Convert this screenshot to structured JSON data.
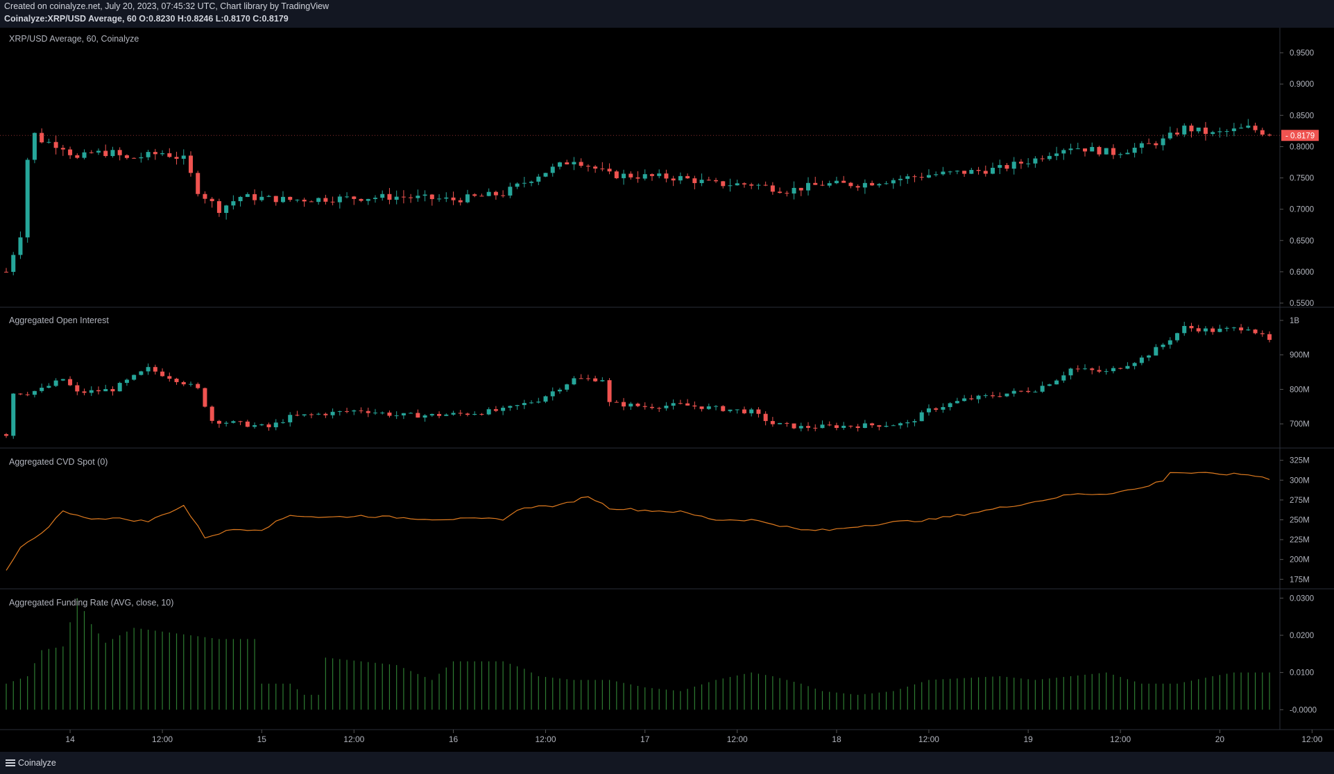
{
  "header": {
    "line1": "Created on coinalyze.net, July 20, 2023, 07:45:32 UTC, Chart library by TradingView",
    "line2": "Coinalyze:XRP/USD Average, 60 O:0.8230 H:0.8246 L:0.8170 C:0.8179"
  },
  "footer": {
    "brand": "Coinalyze"
  },
  "colors": {
    "up": "#26a69a",
    "down": "#ef5350",
    "cvd": "#e07b1f",
    "funding": "#2e7d32",
    "grid": "#2a2e39",
    "text": "#b2b5be"
  },
  "chart_data": [
    {
      "type": "candlestick",
      "title": "XRP/USD Average, 60, Coinalyze",
      "ylim": [
        0.55,
        0.97
      ],
      "y_ticks": [
        "0.9500",
        "0.9000",
        "0.8500",
        "0.8000",
        "0.7500",
        "0.7000",
        "0.6500",
        "0.6000",
        "0.5500"
      ],
      "last_price": "0.8179",
      "anchors": [
        [
          0,
          0.6
        ],
        [
          2,
          0.66
        ],
        [
          3,
          0.78
        ],
        [
          4,
          0.82
        ],
        [
          5,
          0.81
        ],
        [
          8,
          0.8
        ],
        [
          10,
          0.78
        ],
        [
          12,
          0.79
        ],
        [
          15,
          0.79
        ],
        [
          17,
          0.78
        ],
        [
          22,
          0.79
        ],
        [
          25,
          0.78
        ],
        [
          27,
          0.73
        ],
        [
          30,
          0.7
        ],
        [
          33,
          0.72
        ],
        [
          40,
          0.715
        ],
        [
          55,
          0.72
        ],
        [
          63,
          0.715
        ],
        [
          70,
          0.725
        ],
        [
          75,
          0.755
        ],
        [
          80,
          0.78
        ],
        [
          85,
          0.755
        ],
        [
          95,
          0.75
        ],
        [
          100,
          0.74
        ],
        [
          105,
          0.74
        ],
        [
          110,
          0.73
        ],
        [
          115,
          0.74
        ],
        [
          120,
          0.74
        ],
        [
          130,
          0.755
        ],
        [
          136,
          0.76
        ],
        [
          140,
          0.765
        ],
        [
          145,
          0.78
        ],
        [
          148,
          0.795
        ],
        [
          150,
          0.8
        ],
        [
          156,
          0.79
        ],
        [
          160,
          0.8
        ],
        [
          163,
          0.81
        ],
        [
          166,
          0.83
        ],
        [
          170,
          0.82
        ],
        [
          175,
          0.83
        ],
        [
          178,
          0.82
        ]
      ],
      "x_labels": [
        {
          "label": "14",
          "bar": 9
        },
        {
          "label": "12:00",
          "bar": 22
        },
        {
          "label": "15",
          "bar": 36
        },
        {
          "label": "12:00",
          "bar": 49
        },
        {
          "label": "16",
          "bar": 63
        },
        {
          "label": "12:00",
          "bar": 76
        },
        {
          "label": "17",
          "bar": 90
        },
        {
          "label": "12:00",
          "bar": 103
        },
        {
          "label": "18",
          "bar": 117
        },
        {
          "label": "12:00",
          "bar": 130
        },
        {
          "label": "19",
          "bar": 144
        },
        {
          "label": "12:00",
          "bar": 157
        },
        {
          "label": "20",
          "bar": 171
        },
        {
          "label": "12:00",
          "bar": 184
        }
      ]
    },
    {
      "type": "candlestick",
      "title": "Aggregated Open Interest",
      "ylim": [
        650,
        1010
      ],
      "y_ticks": [
        "1B",
        "900M",
        "800M",
        "700M"
      ],
      "y_tick_values": [
        1000,
        900,
        800,
        700
      ],
      "anchors": [
        [
          0,
          670
        ],
        [
          1,
          790
        ],
        [
          3,
          790
        ],
        [
          5,
          800
        ],
        [
          8,
          830
        ],
        [
          10,
          790
        ],
        [
          15,
          800
        ],
        [
          20,
          860
        ],
        [
          25,
          820
        ],
        [
          27,
          800
        ],
        [
          29,
          710
        ],
        [
          33,
          700
        ],
        [
          37,
          690
        ],
        [
          40,
          720
        ],
        [
          45,
          730
        ],
        [
          50,
          740
        ],
        [
          55,
          725
        ],
        [
          60,
          725
        ],
        [
          65,
          730
        ],
        [
          70,
          740
        ],
        [
          75,
          770
        ],
        [
          80,
          830
        ],
        [
          84,
          830
        ],
        [
          85,
          760
        ],
        [
          90,
          750
        ],
        [
          95,
          755
        ],
        [
          100,
          745
        ],
        [
          105,
          735
        ],
        [
          108,
          700
        ],
        [
          112,
          690
        ],
        [
          120,
          695
        ],
        [
          127,
          700
        ],
        [
          130,
          740
        ],
        [
          135,
          770
        ],
        [
          140,
          785
        ],
        [
          145,
          800
        ],
        [
          148,
          830
        ],
        [
          150,
          860
        ],
        [
          155,
          850
        ],
        [
          160,
          890
        ],
        [
          163,
          930
        ],
        [
          166,
          980
        ],
        [
          170,
          970
        ],
        [
          175,
          980
        ],
        [
          178,
          940
        ]
      ]
    },
    {
      "type": "line",
      "title": "Aggregated CVD Spot (0)",
      "ylim": [
        170,
        330
      ],
      "y_ticks": [
        "325M",
        "300M",
        "275M",
        "250M",
        "225M",
        "200M",
        "175M"
      ],
      "y_tick_values": [
        325,
        300,
        275,
        250,
        225,
        200,
        175
      ],
      "anchors": [
        [
          0,
          185
        ],
        [
          2,
          215
        ],
        [
          5,
          232
        ],
        [
          8,
          262
        ],
        [
          11,
          252
        ],
        [
          15,
          252
        ],
        [
          20,
          248
        ],
        [
          25,
          268
        ],
        [
          28,
          228
        ],
        [
          32,
          238
        ],
        [
          36,
          238
        ],
        [
          40,
          256
        ],
        [
          45,
          253
        ],
        [
          50,
          255
        ],
        [
          60,
          251
        ],
        [
          70,
          251
        ],
        [
          73,
          266
        ],
        [
          78,
          268
        ],
        [
          82,
          280
        ],
        [
          85,
          265
        ],
        [
          90,
          262
        ],
        [
          95,
          260
        ],
        [
          100,
          250
        ],
        [
          105,
          250
        ],
        [
          108,
          245
        ],
        [
          112,
          237
        ],
        [
          116,
          237
        ],
        [
          120,
          242
        ],
        [
          125,
          247
        ],
        [
          130,
          250
        ],
        [
          135,
          257
        ],
        [
          140,
          265
        ],
        [
          145,
          273
        ],
        [
          150,
          282
        ],
        [
          155,
          283
        ],
        [
          160,
          290
        ],
        [
          163,
          300
        ],
        [
          164,
          310
        ],
        [
          170,
          308
        ],
        [
          175,
          307
        ],
        [
          178,
          302
        ]
      ]
    },
    {
      "type": "bar",
      "title": "Aggregated Funding Rate (AVG, close, 10)",
      "ylim": [
        -0.002,
        0.031
      ],
      "y_ticks": [
        "0.0300",
        "0.0200",
        "0.0100",
        "-0.0000"
      ],
      "y_tick_values": [
        0.03,
        0.02,
        0.01,
        0.0
      ],
      "anchors": [
        [
          0,
          0.007
        ],
        [
          3,
          0.009
        ],
        [
          5,
          0.016
        ],
        [
          8,
          0.017
        ],
        [
          10,
          0.03
        ],
        [
          12,
          0.023
        ],
        [
          14,
          0.018
        ],
        [
          18,
          0.022
        ],
        [
          22,
          0.021
        ],
        [
          26,
          0.02
        ],
        [
          30,
          0.019
        ],
        [
          35,
          0.019
        ],
        [
          36,
          0.007
        ],
        [
          40,
          0.007
        ],
        [
          42,
          0.004
        ],
        [
          44,
          0.004
        ],
        [
          45,
          0.014
        ],
        [
          50,
          0.013
        ],
        [
          55,
          0.012
        ],
        [
          60,
          0.008
        ],
        [
          63,
          0.013
        ],
        [
          70,
          0.013
        ],
        [
          73,
          0.011
        ],
        [
          75,
          0.009
        ],
        [
          80,
          0.008
        ],
        [
          85,
          0.008
        ],
        [
          90,
          0.006
        ],
        [
          95,
          0.005
        ],
        [
          100,
          0.008
        ],
        [
          105,
          0.01
        ],
        [
          108,
          0.009
        ],
        [
          112,
          0.007
        ],
        [
          115,
          0.005
        ],
        [
          120,
          0.004
        ],
        [
          125,
          0.005
        ],
        [
          130,
          0.008
        ],
        [
          140,
          0.009
        ],
        [
          145,
          0.008
        ],
        [
          150,
          0.009
        ],
        [
          155,
          0.01
        ],
        [
          160,
          0.007
        ],
        [
          165,
          0.007
        ],
        [
          170,
          0.009
        ],
        [
          173,
          0.01
        ],
        [
          178,
          0.01
        ]
      ]
    }
  ]
}
